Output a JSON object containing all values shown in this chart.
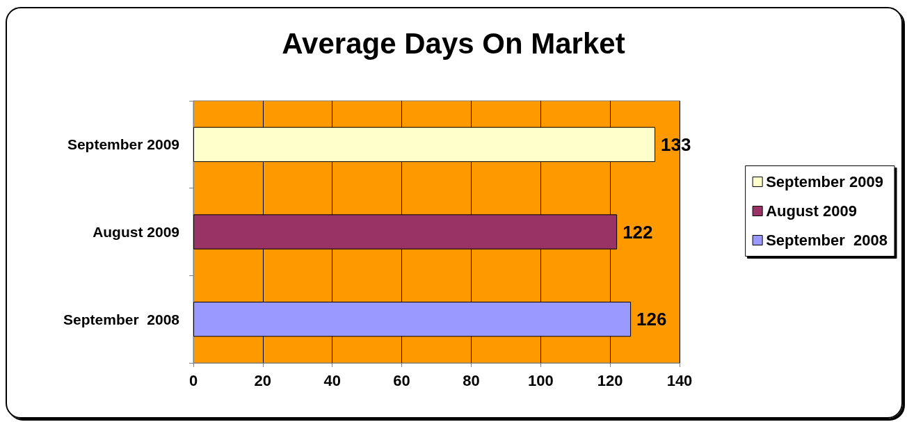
{
  "chart_data": {
    "type": "bar",
    "orientation": "horizontal",
    "stacked": true,
    "title": "Average Days On Market",
    "categories": [
      "September 2009",
      "August 2009",
      "September  2008"
    ],
    "series": [
      {
        "name": "September 2009",
        "color": "#ffffcc",
        "values": [
          133,
          null,
          null
        ]
      },
      {
        "name": "August 2009",
        "color": "#993366",
        "values": [
          null,
          122,
          null
        ]
      },
      {
        "name": "September  2008",
        "color": "#9999ff",
        "values": [
          null,
          null,
          126
        ]
      }
    ],
    "xlim": [
      0,
      140
    ],
    "xticks": [
      0,
      20,
      40,
      60,
      80,
      100,
      120,
      140
    ],
    "grid": "x",
    "legend": "right",
    "data_labels": true
  }
}
